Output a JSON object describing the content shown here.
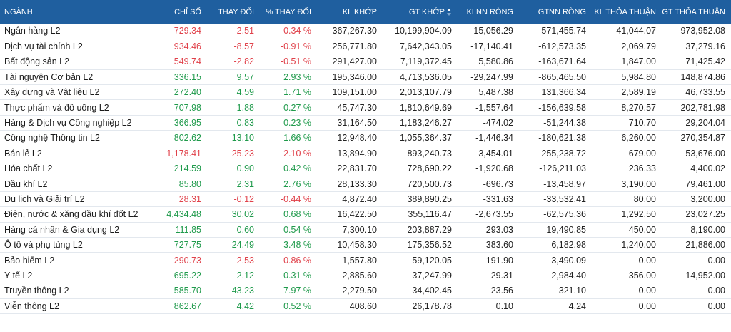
{
  "colors": {
    "header_bg": "#1f5f9f",
    "up": "#1f9a4b",
    "down": "#e0414a"
  },
  "table": {
    "headers": [
      "NGÀNH",
      "CHỈ SỐ",
      "THAY ĐỔI",
      "% THAY ĐỔI",
      "KL KHỚP",
      "GT KHỚP",
      "KLNN RÒNG",
      "GTNN RÒNG",
      "KL THỎA THUẬN",
      "GT THỎA THUẬN"
    ],
    "sort_icon": "sort-icon",
    "rows": [
      {
        "name": "Ngân hàng L2",
        "index": "729.34",
        "change": "-2.51",
        "pct": "-0.34 %",
        "kl": "367,267.30",
        "gt": "10,199,904.09",
        "klnn": "-15,056.29",
        "gtnn": "-571,455.74",
        "kltt": "41,044.07",
        "gttt": "973,952.08",
        "dir": "down"
      },
      {
        "name": "Dịch vụ tài chính L2",
        "index": "934.46",
        "change": "-8.57",
        "pct": "-0.91 %",
        "kl": "256,771.80",
        "gt": "7,642,343.05",
        "klnn": "-17,140.41",
        "gtnn": "-612,573.35",
        "kltt": "2,069.79",
        "gttt": "37,279.16",
        "dir": "down"
      },
      {
        "name": "Bất động sản L2",
        "index": "549.74",
        "change": "-2.82",
        "pct": "-0.51 %",
        "kl": "291,427.00",
        "gt": "7,119,372.45",
        "klnn": "5,580.86",
        "gtnn": "-163,671.64",
        "kltt": "1,847.00",
        "gttt": "71,425.42",
        "dir": "down"
      },
      {
        "name": "Tài nguyên Cơ bản L2",
        "index": "336.15",
        "change": "9.57",
        "pct": "2.93 %",
        "kl": "195,346.00",
        "gt": "4,713,536.05",
        "klnn": "-29,247.99",
        "gtnn": "-865,465.50",
        "kltt": "5,984.80",
        "gttt": "148,874.86",
        "dir": "up"
      },
      {
        "name": "Xây dựng và Vật liệu L2",
        "index": "272.40",
        "change": "4.59",
        "pct": "1.71 %",
        "kl": "109,151.00",
        "gt": "2,013,107.79",
        "klnn": "5,487.38",
        "gtnn": "131,366.34",
        "kltt": "2,589.19",
        "gttt": "46,733.55",
        "dir": "up"
      },
      {
        "name": "Thực phẩm và đồ uống L2",
        "index": "707.98",
        "change": "1.88",
        "pct": "0.27 %",
        "kl": "45,747.30",
        "gt": "1,810,649.69",
        "klnn": "-1,557.64",
        "gtnn": "-156,639.58",
        "kltt": "8,270.57",
        "gttt": "202,781.98",
        "dir": "up"
      },
      {
        "name": "Hàng & Dịch vụ Công nghiệp L2",
        "index": "366.95",
        "change": "0.83",
        "pct": "0.23 %",
        "kl": "31,164.50",
        "gt": "1,183,246.27",
        "klnn": "-474.02",
        "gtnn": "-51,244.38",
        "kltt": "710.70",
        "gttt": "29,204.04",
        "dir": "up"
      },
      {
        "name": "Công nghệ Thông tin L2",
        "index": "802.62",
        "change": "13.10",
        "pct": "1.66 %",
        "kl": "12,948.40",
        "gt": "1,055,364.37",
        "klnn": "-1,446.34",
        "gtnn": "-180,621.38",
        "kltt": "6,260.00",
        "gttt": "270,354.87",
        "dir": "up"
      },
      {
        "name": "Bán lẻ L2",
        "index": "1,178.41",
        "change": "-25.23",
        "pct": "-2.10 %",
        "kl": "13,894.90",
        "gt": "893,240.73",
        "klnn": "-3,454.01",
        "gtnn": "-255,238.72",
        "kltt": "679.00",
        "gttt": "53,676.00",
        "dir": "down"
      },
      {
        "name": "Hóa chất L2",
        "index": "214.59",
        "change": "0.90",
        "pct": "0.42 %",
        "kl": "22,831.70",
        "gt": "728,690.22",
        "klnn": "-1,920.68",
        "gtnn": "-126,211.03",
        "kltt": "236.33",
        "gttt": "4,400.02",
        "dir": "up"
      },
      {
        "name": "Dầu khí L2",
        "index": "85.80",
        "change": "2.31",
        "pct": "2.76 %",
        "kl": "28,133.30",
        "gt": "720,500.73",
        "klnn": "-696.73",
        "gtnn": "-13,458.97",
        "kltt": "3,190.00",
        "gttt": "79,461.00",
        "dir": "up"
      },
      {
        "name": "Du lịch và Giải trí L2",
        "index": "28.31",
        "change": "-0.12",
        "pct": "-0.44 %",
        "kl": "4,872.40",
        "gt": "389,890.25",
        "klnn": "-331.63",
        "gtnn": "-33,532.41",
        "kltt": "80.00",
        "gttt": "3,200.00",
        "dir": "down"
      },
      {
        "name": "Điện, nước & xăng dầu khí đốt L2",
        "index": "4,434.48",
        "change": "30.02",
        "pct": "0.68 %",
        "kl": "16,422.50",
        "gt": "355,116.47",
        "klnn": "-2,673.55",
        "gtnn": "-62,575.36",
        "kltt": "1,292.50",
        "gttt": "23,027.25",
        "dir": "up"
      },
      {
        "name": "Hàng cá nhân & Gia dụng L2",
        "index": "111.85",
        "change": "0.60",
        "pct": "0.54 %",
        "kl": "7,300.10",
        "gt": "203,887.29",
        "klnn": "293.03",
        "gtnn": "19,490.85",
        "kltt": "450.00",
        "gttt": "8,190.00",
        "dir": "up"
      },
      {
        "name": "Ô tô và phụ tùng L2",
        "index": "727.75",
        "change": "24.49",
        "pct": "3.48 %",
        "kl": "10,458.30",
        "gt": "175,356.52",
        "klnn": "383.60",
        "gtnn": "6,182.98",
        "kltt": "1,240.00",
        "gttt": "21,886.00",
        "dir": "up"
      },
      {
        "name": "Bảo hiểm L2",
        "index": "290.73",
        "change": "-2.53",
        "pct": "-0.86 %",
        "kl": "1,557.80",
        "gt": "59,120.05",
        "klnn": "-191.90",
        "gtnn": "-3,490.09",
        "kltt": "0.00",
        "gttt": "0.00",
        "dir": "down"
      },
      {
        "name": "Y tế L2",
        "index": "695.22",
        "change": "2.12",
        "pct": "0.31 %",
        "kl": "2,885.60",
        "gt": "37,247.99",
        "klnn": "29.31",
        "gtnn": "2,984.40",
        "kltt": "356.00",
        "gttt": "14,952.00",
        "dir": "up"
      },
      {
        "name": "Truyền thông L2",
        "index": "585.70",
        "change": "43.23",
        "pct": "7.97 %",
        "kl": "2,279.50",
        "gt": "34,402.45",
        "klnn": "23.56",
        "gtnn": "321.10",
        "kltt": "0.00",
        "gttt": "0.00",
        "dir": "up"
      },
      {
        "name": "Viễn thông L2",
        "index": "862.67",
        "change": "4.42",
        "pct": "0.52 %",
        "kl": "408.60",
        "gt": "26,178.78",
        "klnn": "0.10",
        "gtnn": "4.24",
        "kltt": "0.00",
        "gttt": "0.00",
        "dir": "up"
      }
    ]
  }
}
